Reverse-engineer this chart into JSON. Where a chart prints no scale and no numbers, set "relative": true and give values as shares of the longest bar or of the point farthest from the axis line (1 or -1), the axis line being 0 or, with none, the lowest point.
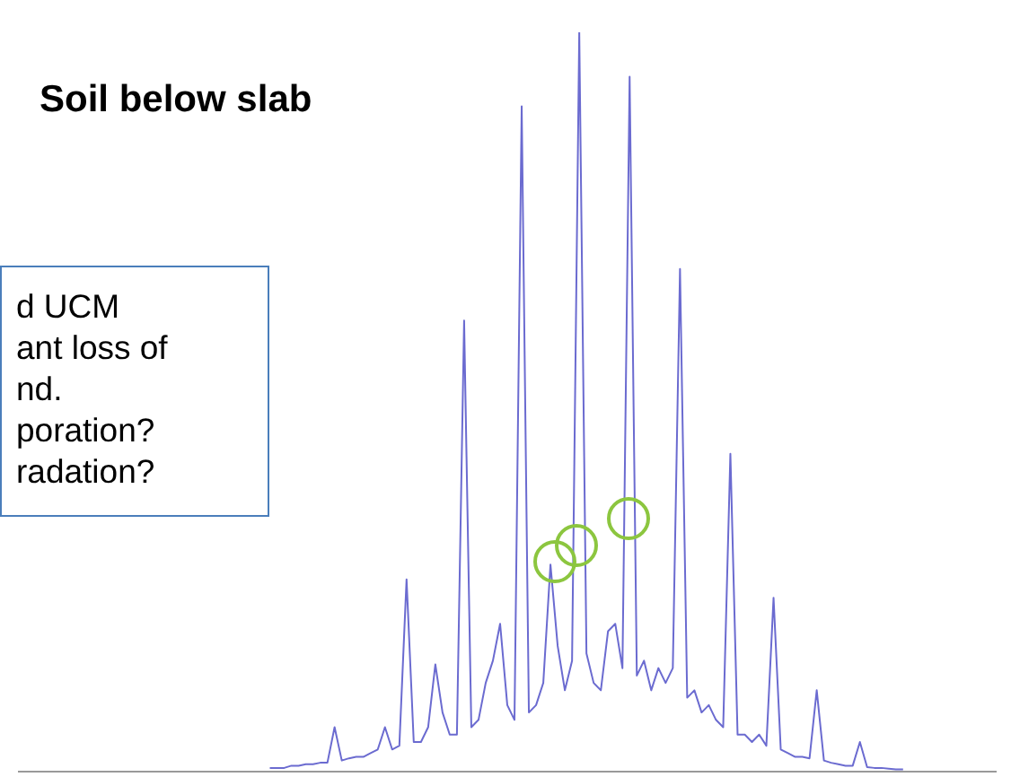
{
  "chart_data": {
    "type": "line",
    "relative": true,
    "title": "Soil below slab",
    "annotations": [
      "d UCM",
      "ant loss of",
      "nd.",
      "poration?",
      "radation?"
    ],
    "color": "#6b6bd0",
    "marker": "none",
    "categories": [
      null,
      null,
      null,
      null,
      null,
      null,
      null,
      null,
      null,
      null,
      null,
      null,
      null,
      null,
      null,
      null,
      null,
      null,
      null,
      null,
      null,
      null,
      null,
      null,
      null,
      null,
      null,
      null,
      null,
      null,
      null,
      null,
      null,
      null,
      null,
      null,
      null,
      null,
      null,
      null,
      null,
      null,
      null,
      null,
      null,
      null,
      null,
      null,
      null,
      null,
      null,
      null,
      null,
      null,
      null,
      null,
      null,
      null,
      null,
      null,
      null,
      null,
      null,
      null,
      null,
      null,
      null,
      null,
      null,
      null,
      null,
      null,
      null,
      null,
      null,
      null,
      null,
      null,
      null,
      null,
      null,
      null,
      null,
      null,
      null,
      null,
      null,
      null,
      null,
      null,
      null,
      null,
      null,
      null,
      null,
      null,
      null,
      null,
      null,
      null,
      null,
      null,
      null,
      null,
      null,
      null,
      null,
      null,
      null,
      null,
      null,
      null,
      null,
      null,
      null,
      null,
      null,
      null,
      null,
      null,
      null,
      null,
      null,
      null,
      null,
      null,
      null,
      null,
      null,
      null,
      null,
      null,
      null,
      null,
      null,
      null,
      null
    ],
    "values": [
      null,
      null,
      null,
      null,
      null,
      null,
      null,
      null,
      null,
      null,
      null,
      null,
      null,
      null,
      null,
      null,
      null,
      null,
      null,
      null,
      null,
      null,
      null,
      null,
      null,
      null,
      null,
      null,
      null,
      null,
      null,
      null,
      null,
      null,
      null,
      0.005,
      0.005,
      0.005,
      0.008,
      0.008,
      0.01,
      0.01,
      0.012,
      0.012,
      0.06,
      0.015,
      0.018,
      0.02,
      0.02,
      0.025,
      0.03,
      0.06,
      0.03,
      0.035,
      0.26,
      0.04,
      0.04,
      0.06,
      0.145,
      0.08,
      0.05,
      0.05,
      0.61,
      0.06,
      0.07,
      0.12,
      0.15,
      0.2,
      0.09,
      0.07,
      0.9,
      0.08,
      0.09,
      0.12,
      0.28,
      0.17,
      0.11,
      0.15,
      1,
      0.16,
      0.12,
      0.11,
      0.19,
      0.2,
      0.14,
      0.94,
      0.13,
      0.15,
      0.11,
      0.14,
      0.12,
      0.14,
      0.68,
      0.1,
      0.11,
      0.08,
      0.09,
      0.07,
      0.06,
      0.43,
      0.05,
      0.05,
      0.04,
      0.05,
      0.035,
      0.235,
      0.03,
      0.025,
      0.02,
      0.02,
      0.018,
      0.11,
      0.015,
      0.012,
      0.01,
      0.008,
      0.008,
      0.04,
      0.006,
      0.005,
      0.005,
      0.004,
      0.003,
      0.003,
      null,
      null,
      null,
      null,
      null,
      null,
      null,
      null,
      null,
      null,
      null,
      null,
      null
    ]
  }
}
